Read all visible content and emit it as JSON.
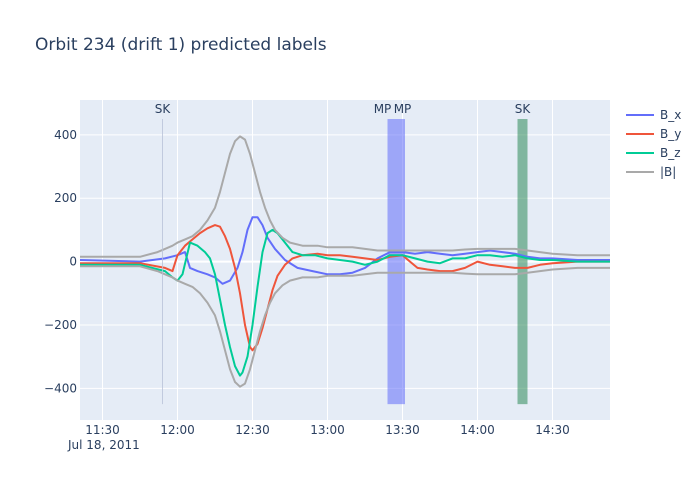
{
  "chart_data": {
    "type": "line",
    "title": "Orbit 234 (drift 1) predicted labels",
    "date_label": "Jul 18, 2011",
    "x_tick_labels": [
      "11:30",
      "12:00",
      "12:30",
      "13:00",
      "13:30",
      "14:00",
      "14:30"
    ],
    "x_tick_values": [
      "11:30",
      "12:00",
      "12:30",
      "13:00",
      "13:30",
      "14:00",
      "14:30"
    ],
    "xlim": [
      "11:21",
      "14:53"
    ],
    "y_tick_labels": [
      "400",
      "200",
      "0",
      "−200",
      "−400"
    ],
    "y_tick_values": [
      400,
      200,
      0,
      -200,
      -400
    ],
    "ylim": [
      -500,
      510
    ],
    "grid": true,
    "legend_position": "right",
    "series": [
      {
        "name": "B_x",
        "color": "#636efa",
        "points": [
          [
            "11:21",
            5
          ],
          [
            "11:45",
            0
          ],
          [
            "11:55",
            10
          ],
          [
            "12:00",
            20
          ],
          [
            "12:03",
            30
          ],
          [
            "12:05",
            -20
          ],
          [
            "12:08",
            -30
          ],
          [
            "12:12",
            -40
          ],
          [
            "12:15",
            -50
          ],
          [
            "12:18",
            -70
          ],
          [
            "12:21",
            -60
          ],
          [
            "12:24",
            -20
          ],
          [
            "12:26",
            30
          ],
          [
            "12:28",
            100
          ],
          [
            "12:30",
            140
          ],
          [
            "12:32",
            140
          ],
          [
            "12:34",
            115
          ],
          [
            "12:36",
            75
          ],
          [
            "12:39",
            40
          ],
          [
            "12:43",
            5
          ],
          [
            "12:48",
            -20
          ],
          [
            "12:54",
            -30
          ],
          [
            "13:00",
            -40
          ],
          [
            "13:05",
            -40
          ],
          [
            "13:10",
            -35
          ],
          [
            "13:15",
            -20
          ],
          [
            "13:20",
            10
          ],
          [
            "13:25",
            30
          ],
          [
            "13:30",
            30
          ],
          [
            "13:35",
            25
          ],
          [
            "13:40",
            30
          ],
          [
            "13:45",
            25
          ],
          [
            "13:50",
            20
          ],
          [
            "13:55",
            25
          ],
          [
            "14:00",
            30
          ],
          [
            "14:05",
            35
          ],
          [
            "14:10",
            30
          ],
          [
            "14:15",
            25
          ],
          [
            "14:20",
            15
          ],
          [
            "14:25",
            10
          ],
          [
            "14:30",
            10
          ],
          [
            "14:40",
            5
          ],
          [
            "14:53",
            5
          ]
        ]
      },
      {
        "name": "B_y",
        "color": "#ef553b",
        "points": [
          [
            "11:21",
            -5
          ],
          [
            "11:45",
            -5
          ],
          [
            "11:55",
            -20
          ],
          [
            "11:58",
            -30
          ],
          [
            "12:00",
            20
          ],
          [
            "12:03",
            50
          ],
          [
            "12:06",
            70
          ],
          [
            "12:09",
            90
          ],
          [
            "12:12",
            105
          ],
          [
            "12:15",
            115
          ],
          [
            "12:17",
            110
          ],
          [
            "12:19",
            80
          ],
          [
            "12:21",
            40
          ],
          [
            "12:23",
            -20
          ],
          [
            "12:25",
            -100
          ],
          [
            "12:27",
            -200
          ],
          [
            "12:29",
            -270
          ],
          [
            "12:30",
            -280
          ],
          [
            "12:32",
            -260
          ],
          [
            "12:34",
            -210
          ],
          [
            "12:36",
            -150
          ],
          [
            "12:38",
            -90
          ],
          [
            "12:40",
            -45
          ],
          [
            "12:43",
            -10
          ],
          [
            "12:46",
            10
          ],
          [
            "12:50",
            20
          ],
          [
            "12:56",
            25
          ],
          [
            "13:00",
            20
          ],
          [
            "13:05",
            20
          ],
          [
            "13:10",
            15
          ],
          [
            "13:15",
            10
          ],
          [
            "13:20",
            5
          ],
          [
            "13:25",
            15
          ],
          [
            "13:30",
            20
          ],
          [
            "13:33",
            0
          ],
          [
            "13:36",
            -20
          ],
          [
            "13:40",
            -25
          ],
          [
            "13:45",
            -30
          ],
          [
            "13:50",
            -30
          ],
          [
            "13:55",
            -20
          ],
          [
            "14:00",
            0
          ],
          [
            "14:05",
            -10
          ],
          [
            "14:10",
            -15
          ],
          [
            "14:15",
            -20
          ],
          [
            "14:20",
            -20
          ],
          [
            "14:25",
            -10
          ],
          [
            "14:30",
            -5
          ],
          [
            "14:40",
            0
          ],
          [
            "14:53",
            0
          ]
        ]
      },
      {
        "name": "B_z",
        "color": "#00cc96",
        "points": [
          [
            "11:21",
            -10
          ],
          [
            "11:45",
            -10
          ],
          [
            "11:55",
            -30
          ],
          [
            "11:58",
            -50
          ],
          [
            "12:00",
            -60
          ],
          [
            "12:02",
            -40
          ],
          [
            "12:05",
            60
          ],
          [
            "12:08",
            50
          ],
          [
            "12:11",
            30
          ],
          [
            "12:13",
            10
          ],
          [
            "12:15",
            -40
          ],
          [
            "12:17",
            -120
          ],
          [
            "12:19",
            -200
          ],
          [
            "12:21",
            -270
          ],
          [
            "12:23",
            -330
          ],
          [
            "12:25",
            -360
          ],
          [
            "12:26",
            -350
          ],
          [
            "12:28",
            -300
          ],
          [
            "12:30",
            -200
          ],
          [
            "12:32",
            -80
          ],
          [
            "12:34",
            30
          ],
          [
            "12:36",
            90
          ],
          [
            "12:38",
            100
          ],
          [
            "12:40",
            90
          ],
          [
            "12:43",
            60
          ],
          [
            "12:46",
            30
          ],
          [
            "12:50",
            20
          ],
          [
            "12:55",
            20
          ],
          [
            "13:00",
            10
          ],
          [
            "13:05",
            5
          ],
          [
            "13:10",
            0
          ],
          [
            "13:15",
            -10
          ],
          [
            "13:20",
            0
          ],
          [
            "13:25",
            20
          ],
          [
            "13:30",
            20
          ],
          [
            "13:35",
            10
          ],
          [
            "13:40",
            0
          ],
          [
            "13:45",
            -5
          ],
          [
            "13:50",
            10
          ],
          [
            "13:55",
            10
          ],
          [
            "14:00",
            20
          ],
          [
            "14:05",
            20
          ],
          [
            "14:10",
            15
          ],
          [
            "14:15",
            20
          ],
          [
            "14:20",
            10
          ],
          [
            "14:25",
            5
          ],
          [
            "14:30",
            5
          ],
          [
            "14:40",
            0
          ],
          [
            "14:53",
            0
          ]
        ]
      },
      {
        "name": "|B|",
        "color": "#a9a9a9",
        "points": [
          [
            "11:21",
            15
          ],
          [
            "11:45",
            15
          ],
          [
            "11:52",
            30
          ],
          [
            "11:55",
            40
          ],
          [
            "11:58",
            50
          ],
          [
            "12:00",
            60
          ],
          [
            "12:03",
            70
          ],
          [
            "12:06",
            80
          ],
          [
            "12:09",
            100
          ],
          [
            "12:12",
            130
          ],
          [
            "12:15",
            170
          ],
          [
            "12:17",
            220
          ],
          [
            "12:19",
            280
          ],
          [
            "12:21",
            340
          ],
          [
            "12:23",
            380
          ],
          [
            "12:25",
            395
          ],
          [
            "12:27",
            385
          ],
          [
            "12:29",
            340
          ],
          [
            "12:31",
            280
          ],
          [
            "12:33",
            220
          ],
          [
            "12:35",
            170
          ],
          [
            "12:37",
            130
          ],
          [
            "12:39",
            100
          ],
          [
            "12:42",
            75
          ],
          [
            "12:45",
            60
          ],
          [
            "12:50",
            50
          ],
          [
            "12:56",
            50
          ],
          [
            "13:00",
            45
          ],
          [
            "13:05",
            45
          ],
          [
            "13:10",
            45
          ],
          [
            "13:15",
            40
          ],
          [
            "13:20",
            35
          ],
          [
            "13:25",
            35
          ],
          [
            "13:30",
            35
          ],
          [
            "13:35",
            35
          ],
          [
            "13:40",
            35
          ],
          [
            "13:45",
            35
          ],
          [
            "13:50",
            35
          ],
          [
            "13:55",
            38
          ],
          [
            "14:00",
            40
          ],
          [
            "14:05",
            40
          ],
          [
            "14:10",
            40
          ],
          [
            "14:15",
            40
          ],
          [
            "14:20",
            35
          ],
          [
            "14:25",
            30
          ],
          [
            "14:30",
            25
          ],
          [
            "14:40",
            20
          ],
          [
            "14:53",
            20
          ]
        ]
      }
    ],
    "shaded_regions": [
      {
        "label": "MP",
        "start": "13:24",
        "end": "13:31",
        "color": "#636efa"
      },
      {
        "label": "SK",
        "start": "14:16",
        "end": "14:20",
        "color": "#2e8b57"
      }
    ],
    "annotations": [
      {
        "label": "SK",
        "x": "11:54"
      },
      {
        "label": "MP",
        "x": "13:22"
      },
      {
        "label": "MP",
        "x": "13:30"
      },
      {
        "label": "SK",
        "x": "14:18"
      }
    ]
  }
}
